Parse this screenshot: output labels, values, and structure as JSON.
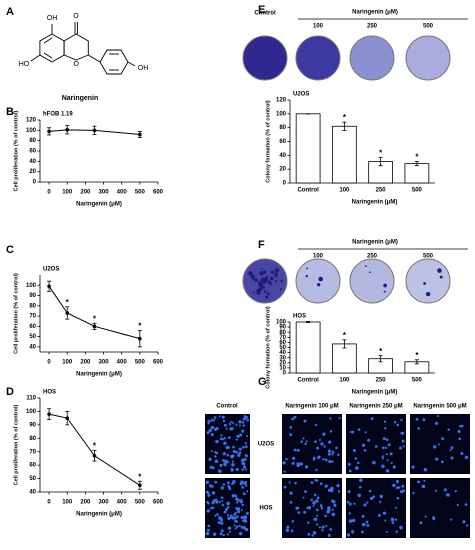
{
  "panels": [
    "A",
    "B",
    "C",
    "D",
    "E",
    "F",
    "G"
  ],
  "structure": {
    "label": "Naringenin",
    "atoms": [
      "OH",
      "O",
      "HO",
      "O",
      "OH"
    ]
  },
  "plates": [
    {
      "control": "Control",
      "group": "Naringenin (μM)",
      "doses": [
        "100",
        "250",
        "500"
      ]
    },
    {
      "group": "Naringenin (μM)",
      "doses": [
        "100",
        "250",
        "500"
      ]
    }
  ],
  "microscopy": {
    "columns": [
      "Control",
      "Naringenin 100 μM",
      "Naringenin 250 μM",
      "Naringenin 500 μM"
    ],
    "rows": [
      "U2OS",
      "HOS"
    ]
  },
  "chart_data": [
    {
      "type": "line",
      "title": "hFOB 1.19",
      "x": [
        0,
        100,
        250,
        500
      ],
      "values": [
        98,
        101,
        100,
        92
      ],
      "errors": [
        7,
        8,
        8,
        6
      ],
      "significance": [
        null,
        null,
        null,
        null
      ],
      "xlim": [
        -50,
        600
      ],
      "xticks": [
        0,
        100,
        200,
        300,
        400,
        500,
        600
      ],
      "ylim": [
        0,
        120
      ],
      "yticks": [
        0,
        20,
        40,
        60,
        80,
        100,
        120
      ],
      "xlabel": "Naringenin (μM)",
      "ylabel": "Cell proliferation (% of control)",
      "color": "#000000"
    },
    {
      "type": "line",
      "title": "U2OS",
      "x": [
        0,
        100,
        250,
        500
      ],
      "values": [
        99,
        73,
        60,
        48
      ],
      "errors": [
        5,
        6,
        3,
        8
      ],
      "significance": [
        null,
        "*",
        "*",
        "*"
      ],
      "xlim": [
        -50,
        600
      ],
      "xticks": [
        0,
        100,
        200,
        300,
        400,
        500,
        600
      ],
      "ylim": [
        35,
        110
      ],
      "yticks": [
        40,
        50,
        60,
        70,
        80,
        90,
        100
      ],
      "xlabel": "Naringenin (μM)",
      "ylabel": "Cell proliferation (% of control)",
      "color": "#000000"
    },
    {
      "type": "line",
      "title": "HOS",
      "x": [
        0,
        100,
        250,
        500
      ],
      "values": [
        98,
        95,
        67,
        45
      ],
      "errors": [
        4,
        5,
        4,
        3
      ],
      "significance": [
        null,
        null,
        "*",
        "*"
      ],
      "xlim": [
        -50,
        600
      ],
      "xticks": [
        0,
        100,
        200,
        300,
        400,
        500,
        600
      ],
      "ylim": [
        40,
        110
      ],
      "yticks": [
        40,
        50,
        60,
        70,
        80,
        90,
        100,
        110
      ],
      "xlabel": "Naringenin (μM)",
      "ylabel": "Cell proliferation (% of control)",
      "color": "#000000"
    },
    {
      "type": "bar",
      "title": "U2OS",
      "categories": [
        "Control",
        "100",
        "250",
        "500"
      ],
      "values": [
        100,
        82,
        31,
        28
      ],
      "errors": [
        0,
        6,
        6,
        3
      ],
      "significance": [
        null,
        "*",
        "*",
        "*"
      ],
      "ylim": [
        0,
        120
      ],
      "yticks": [
        0,
        20,
        40,
        60,
        80,
        100,
        120
      ],
      "xlabel": "Naringenin (μM)",
      "ylabel": "Colony formation (% of control)",
      "color": "#ffffff"
    },
    {
      "type": "bar",
      "title": "HOS",
      "categories": [
        "Control",
        "100",
        "250",
        "500"
      ],
      "values": [
        100,
        57,
        28,
        22
      ],
      "errors": [
        1,
        8,
        6,
        4
      ],
      "significance": [
        null,
        "*",
        "*",
        "*"
      ],
      "ylim": [
        0,
        100
      ],
      "yticks": [
        0,
        10,
        20,
        30,
        40,
        50,
        60,
        70,
        80,
        90,
        100
      ],
      "xlabel": "Naringenin (μM)",
      "ylabel": "Colony formation (% of control)",
      "color": "#ffffff"
    }
  ]
}
